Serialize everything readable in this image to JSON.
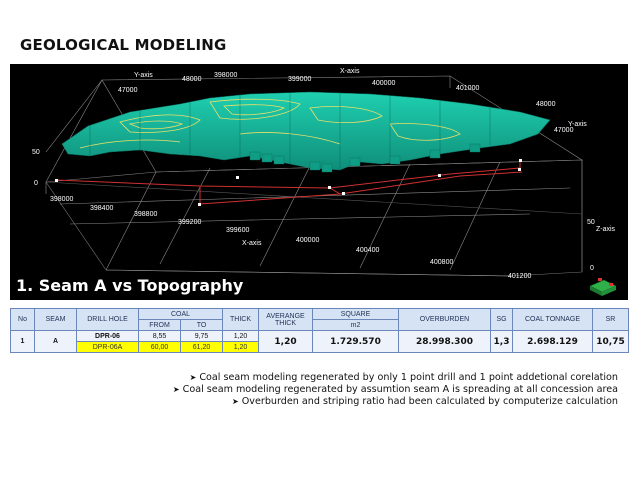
{
  "page": {
    "title": "GEOLOGICAL MODELING"
  },
  "viewport": {
    "caption": "1. Seam A vs Topography",
    "axes": {
      "y_axis_label": "Y-axis",
      "x_axis_label": "X-axis",
      "z_axis_label": "Z-axis",
      "x_axis_label_bottom": "X-axis",
      "y_axis_label_right": "Y-axis",
      "top_y_ticks": [
        "48000",
        "47000"
      ],
      "top_x_ticks": [
        "398000",
        "399000",
        "400000",
        "401000"
      ],
      "right_y_ticks": [
        "48000",
        "47000"
      ],
      "left_z_ticks": [
        "50",
        "0"
      ],
      "right_z_ticks": [
        "50",
        "0"
      ],
      "bottom_x_ticks": [
        "398000",
        "398400",
        "398800",
        "399200",
        "399600",
        "400000",
        "400400",
        "400800",
        "401200"
      ]
    }
  },
  "table": {
    "headers": {
      "no": "No",
      "seam": "SEAM",
      "drill_hole": "DRILL HOLE",
      "coal": "COAL",
      "from": "FROM",
      "to": "TO",
      "thick": "THICK",
      "average_thick": "AVERANGE THICK",
      "square": "SQUARE",
      "square_unit": "m2",
      "overburden": "OVERBURDEN",
      "sg": "SG",
      "coal_tonnage": "COAL TONNAGE",
      "sr": "SR"
    },
    "rows": [
      {
        "no": "1",
        "seam": "A",
        "drill_1": "DPR-06",
        "from_1": "8,55",
        "to_1": "9,75",
        "thick_1": "1,20",
        "drill_2": "DPR-06A",
        "from_2": "60,00",
        "to_2": "61,20",
        "thick_2": "1,20",
        "average_thick": "1,20",
        "square": "1.729.570",
        "overburden": "28.998.300",
        "sg": "1,3",
        "coal_tonnage": "2.698.129",
        "sr": "10,75"
      }
    ]
  },
  "notes": [
    "Coal seam modeling regenerated by only 1 point drill and 1 point addetional corelation",
    "Coal seam modeling regenerated by assumtion seam A is spreading at all concession area",
    "Overburden and striping ratio had been calculated by computerize calculation"
  ],
  "colors": {
    "surface": "#19b89a",
    "contour": "#e8e06a",
    "outline": "#d03030",
    "background": "#000000"
  }
}
